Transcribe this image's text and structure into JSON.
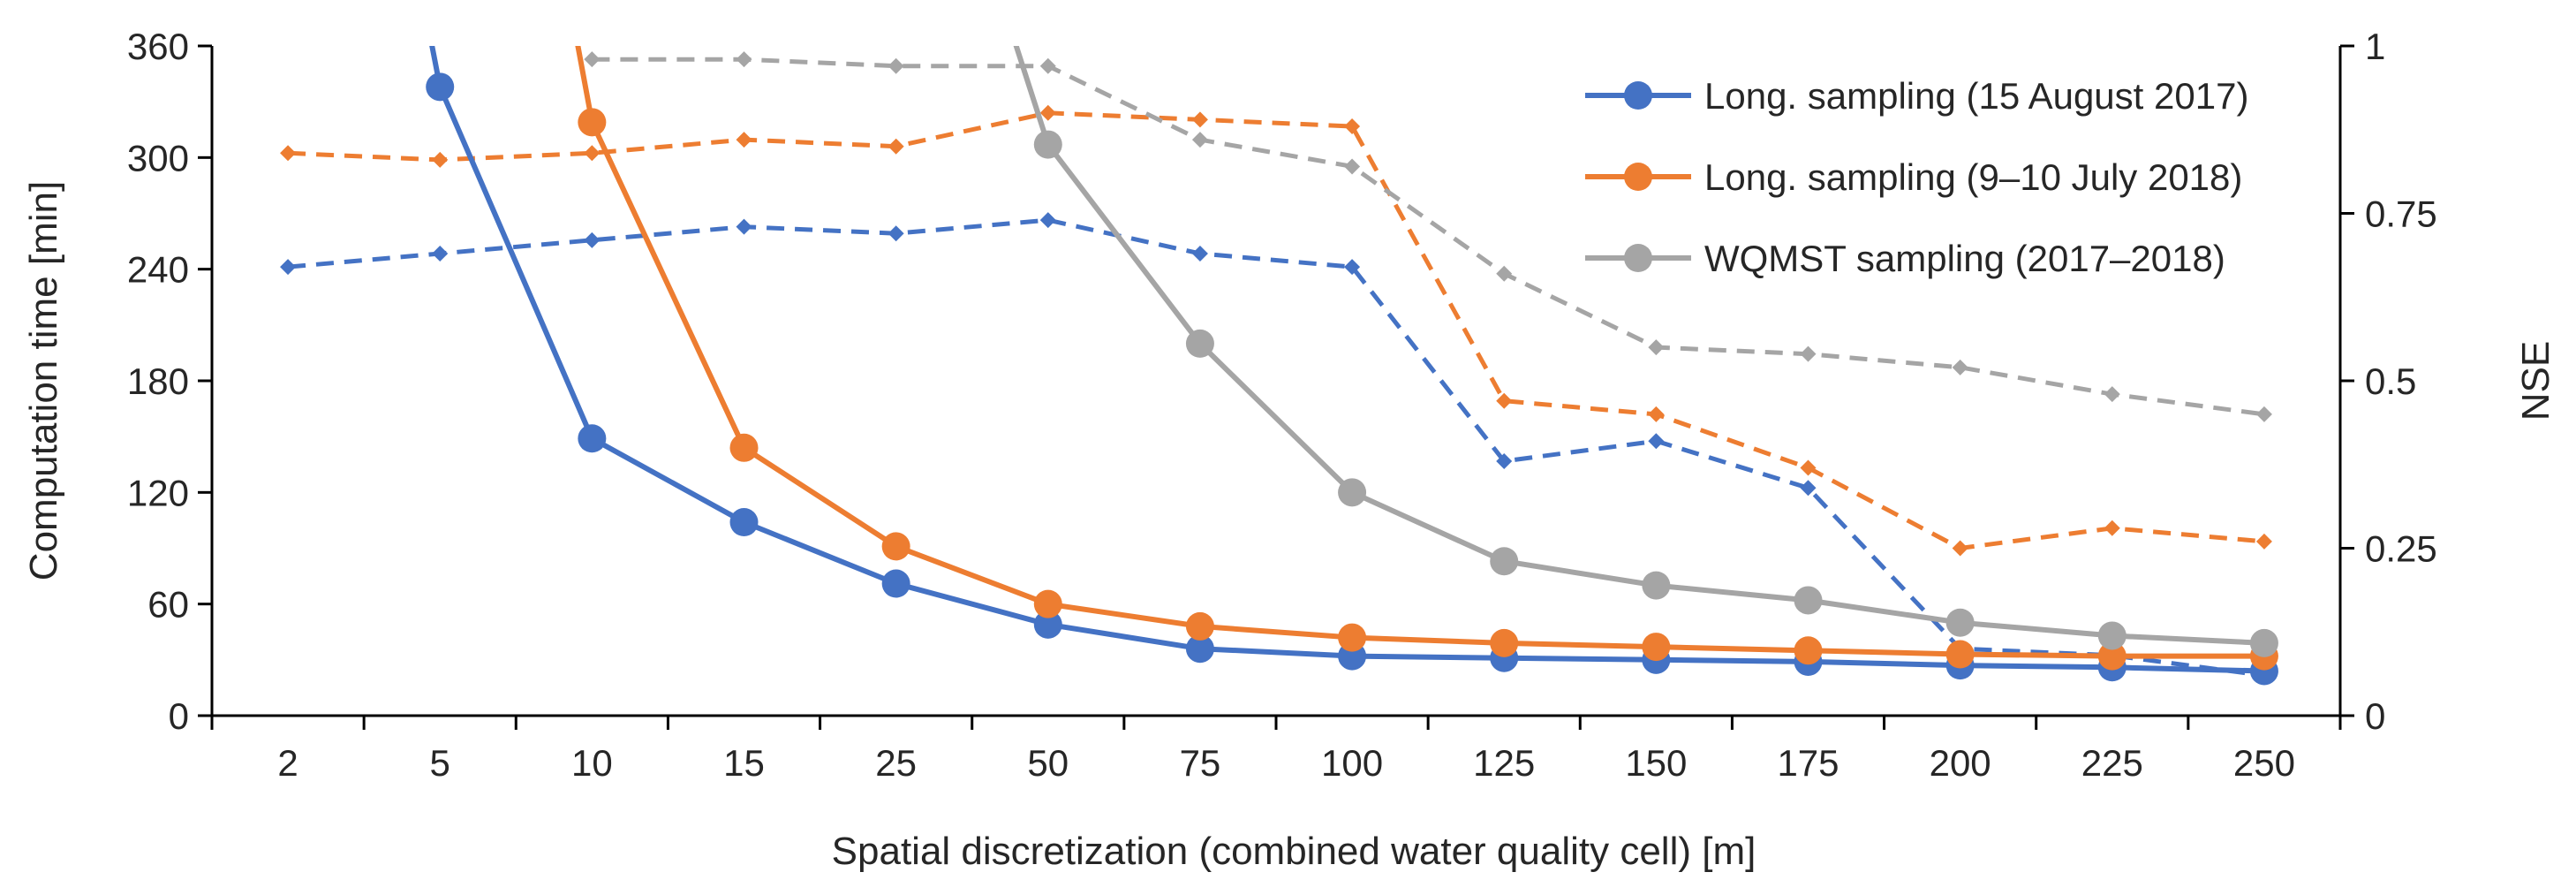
{
  "chart_data": {
    "type": "line",
    "title": "",
    "xlabel": "Spatial discretization (combined water quality cell) [m]",
    "ylabel": "Computation time [min]",
    "y2label": "NSE",
    "categories": [
      "2",
      "5",
      "10",
      "15",
      "25",
      "50",
      "75",
      "100",
      "125",
      "150",
      "175",
      "200",
      "225",
      "250"
    ],
    "ylim": [
      0,
      360
    ],
    "y_ticks": [
      0,
      60,
      120,
      180,
      240,
      300,
      360
    ],
    "y2lim": [
      0,
      1
    ],
    "y2_ticks": [
      "0",
      "0.25",
      "0.5",
      "0.75",
      "1"
    ],
    "legend_position": "top-right",
    "series": [
      {
        "name": "Long. sampling (15 August 2017)",
        "axis": "left",
        "metric": "computation time",
        "color": "#4472c4",
        "style": "solid",
        "marker": "circle",
        "values": [
          null,
          338,
          149,
          104,
          71,
          49,
          36,
          32,
          31,
          30,
          29,
          27,
          26,
          24
        ]
      },
      {
        "name": "Long. sampling  (9–10 July 2018)",
        "axis": "left",
        "metric": "computation time",
        "color": "#ed7d31",
        "style": "solid",
        "marker": "circle",
        "values": [
          null,
          null,
          319,
          144,
          91,
          60,
          48,
          42,
          39,
          37,
          35,
          33,
          32,
          32
        ]
      },
      {
        "name": "WQMST sampling  (2017–2018)",
        "axis": "left",
        "metric": "computation time",
        "color": "#a5a5a5",
        "style": "solid",
        "marker": "circle",
        "values": [
          null,
          null,
          null,
          null,
          null,
          307,
          200,
          120,
          83,
          70,
          62,
          50,
          43,
          39
        ]
      },
      {
        "name": "Long. sampling (15 August 2017) NSE",
        "axis": "right",
        "metric": "NSE",
        "color": "#4472c4",
        "style": "dashed",
        "marker": "diamond",
        "values": [
          0.67,
          0.69,
          0.71,
          0.73,
          0.72,
          0.74,
          0.69,
          0.67,
          0.38,
          0.41,
          0.34,
          0.1,
          0.09,
          0.06
        ]
      },
      {
        "name": "Long. sampling (9–10 July 2018) NSE",
        "axis": "right",
        "metric": "NSE",
        "color": "#ed7d31",
        "style": "dashed",
        "marker": "diamond",
        "values": [
          0.84,
          0.83,
          0.84,
          0.86,
          0.85,
          0.9,
          0.89,
          0.88,
          0.47,
          0.45,
          0.37,
          0.25,
          0.28,
          0.26
        ]
      },
      {
        "name": "WQMST sampling (2017–2018) NSE",
        "axis": "right",
        "metric": "NSE",
        "color": "#a5a5a5",
        "style": "dashed",
        "marker": "diamond",
        "values": [
          null,
          null,
          0.98,
          0.98,
          0.97,
          0.97,
          0.86,
          0.82,
          0.66,
          0.55,
          0.54,
          0.52,
          0.48,
          0.45
        ]
      }
    ],
    "legend": [
      {
        "label": "Long. sampling (15 August 2017)",
        "color": "#4472c4"
      },
      {
        "label": "Long. sampling  (9–10 July 2018)",
        "color": "#ed7d31"
      },
      {
        "label": "WQMST sampling  (2017–2018)",
        "color": "#a5a5a5"
      }
    ]
  }
}
